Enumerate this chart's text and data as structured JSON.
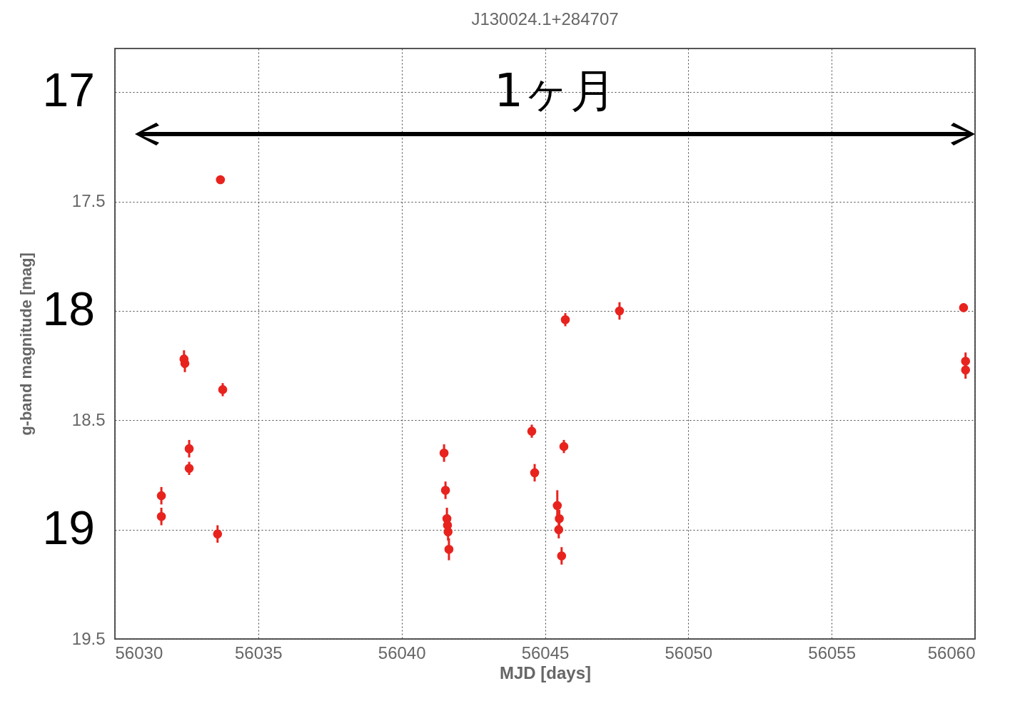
{
  "chart_data": {
    "type": "scatter",
    "title": "J130024.1+284707",
    "xlabel": "MJD [days]",
    "ylabel": "g-band magnitude [mag]",
    "x": [
      56031.62,
      56031.62,
      56032.41,
      56032.44,
      56032.59,
      56032.59,
      56033.68,
      56033.76,
      56033.58,
      56041.48,
      56041.53,
      56041.58,
      56041.6,
      56041.62,
      56041.65,
      56044.54,
      56044.64,
      56045.43,
      56045.5,
      56045.48,
      56045.58,
      56045.66,
      56045.71,
      56047.6,
      56059.6,
      56059.67,
      56059.67
    ],
    "series": [
      {
        "color": "#e8231e",
        "values": [
          18.845,
          18.94,
          18.22,
          18.24,
          18.63,
          18.72,
          17.4,
          18.36,
          19.02,
          18.65,
          18.82,
          18.95,
          18.98,
          19.01,
          19.09,
          18.55,
          18.74,
          18.89,
          18.95,
          19.0,
          19.12,
          18.62,
          18.04,
          18.0,
          17.985,
          18.23,
          18.27
        ],
        "errors": [
          0.04,
          0.04,
          0.04,
          0.04,
          0.04,
          0.03,
          0.02,
          0.03,
          0.04,
          0.04,
          0.04,
          0.05,
          0.05,
          0.04,
          0.05,
          0.03,
          0.04,
          0.07,
          0.04,
          0.04,
          0.04,
          0.03,
          0.03,
          0.04,
          0.02,
          0.04,
          0.04
        ]
      }
    ],
    "xlim": [
      56030,
      56060
    ],
    "xticks": [
      56030,
      56035,
      56040,
      56045,
      56050,
      56055,
      56060
    ],
    "ylim": [
      19.5,
      16.8
    ],
    "yticks": [
      {
        "value": 17,
        "label": null
      },
      17.5,
      {
        "value": 18,
        "label": null
      },
      18.5,
      {
        "value": 19,
        "label": null
      },
      19.5
    ],
    "grid": true,
    "marker": "circle",
    "annotations": [
      "1ヶ月",
      "17",
      "18",
      "19"
    ]
  }
}
